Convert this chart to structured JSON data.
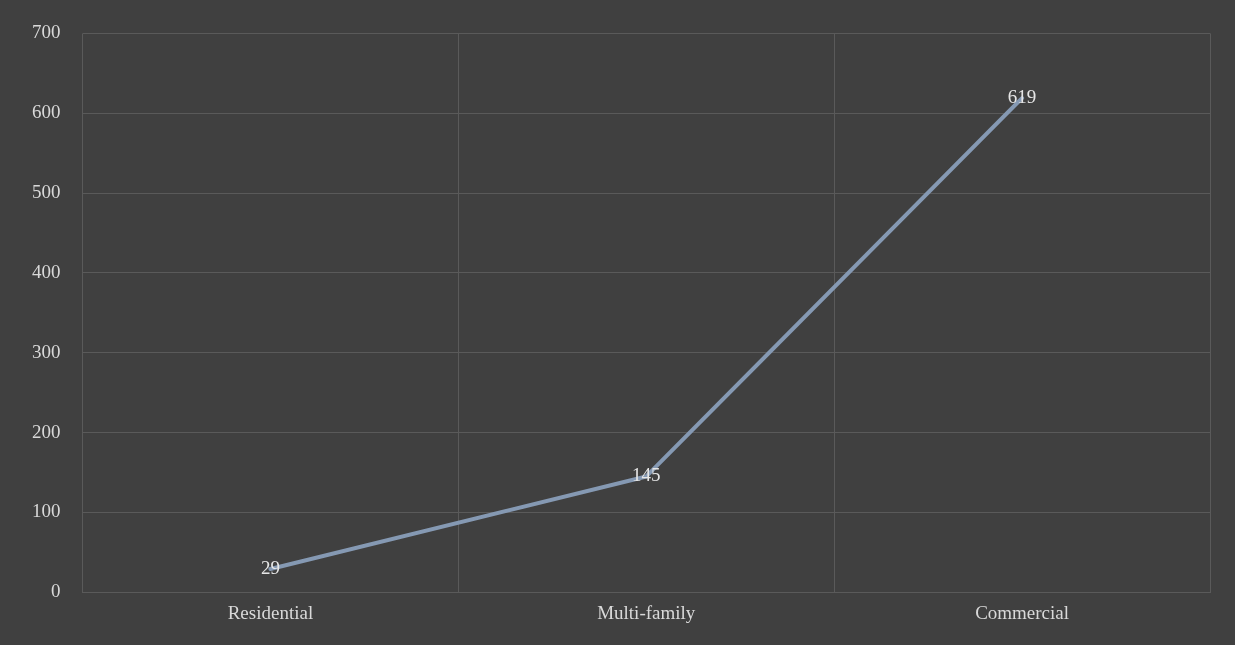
{
  "chart_data": {
    "type": "line",
    "categories": [
      "Residential",
      "Multi-family",
      "Commercial"
    ],
    "series": [
      {
        "color": "#8599b3",
        "values": [
          29,
          145,
          619
        ]
      }
    ],
    "ylim": [
      0,
      700
    ],
    "yticks": [
      0,
      100,
      200,
      300,
      400,
      500,
      600,
      700
    ],
    "grid": true,
    "legend": false,
    "marker": "none",
    "data_labels": true
  }
}
